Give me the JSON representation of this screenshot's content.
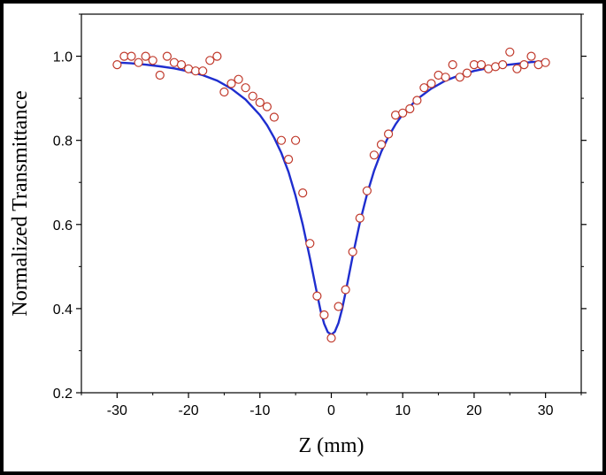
{
  "chart_data": {
    "type": "scatter",
    "xlabel": "Z (mm)",
    "ylabel": "Normalized Transmittance",
    "xlim": [
      -35,
      35
    ],
    "ylim": [
      0.2,
      1.1
    ],
    "xticks": [
      -30,
      -20,
      -10,
      0,
      10,
      20,
      30
    ],
    "yticks": [
      0.2,
      0.4,
      0.6,
      0.8,
      1.0
    ],
    "xtick_labels": [
      "-30",
      "-20",
      "-10",
      "0",
      "10",
      "20",
      "30"
    ],
    "ytick_labels": [
      "0.2",
      "0.4",
      "0.6",
      "0.8",
      "1.0"
    ],
    "grid": false,
    "legend": "none",
    "series": [
      {
        "kind": "markers",
        "marker": "open-circle",
        "color": "#c0392b",
        "points": [
          [
            -30,
            0.98
          ],
          [
            -29,
            1.0
          ],
          [
            -28,
            1.0
          ],
          [
            -27,
            0.985
          ],
          [
            -26,
            1.0
          ],
          [
            -25,
            0.99
          ],
          [
            -24,
            0.955
          ],
          [
            -23,
            1.0
          ],
          [
            -22,
            0.985
          ],
          [
            -21,
            0.98
          ],
          [
            -20,
            0.97
          ],
          [
            -19,
            0.965
          ],
          [
            -18,
            0.965
          ],
          [
            -17,
            0.99
          ],
          [
            -16,
            1.0
          ],
          [
            -15,
            0.915
          ],
          [
            -14,
            0.935
          ],
          [
            -13,
            0.945
          ],
          [
            -12,
            0.925
          ],
          [
            -11,
            0.905
          ],
          [
            -10,
            0.89
          ],
          [
            -9,
            0.88
          ],
          [
            -8,
            0.855
          ],
          [
            -7,
            0.8
          ],
          [
            -6,
            0.755
          ],
          [
            -5,
            0.8
          ],
          [
            -4,
            0.675
          ],
          [
            -3,
            0.555
          ],
          [
            -2,
            0.43
          ],
          [
            -1,
            0.385
          ],
          [
            0,
            0.33
          ],
          [
            1,
            0.405
          ],
          [
            2,
            0.445
          ],
          [
            3,
            0.535
          ],
          [
            4,
            0.615
          ],
          [
            5,
            0.68
          ],
          [
            6,
            0.765
          ],
          [
            7,
            0.79
          ],
          [
            8,
            0.815
          ],
          [
            9,
            0.86
          ],
          [
            10,
            0.865
          ],
          [
            11,
            0.875
          ],
          [
            12,
            0.895
          ],
          [
            13,
            0.925
          ],
          [
            14,
            0.935
          ],
          [
            15,
            0.955
          ],
          [
            16,
            0.95
          ],
          [
            17,
            0.98
          ],
          [
            18,
            0.95
          ],
          [
            19,
            0.96
          ],
          [
            20,
            0.98
          ],
          [
            21,
            0.98
          ],
          [
            22,
            0.97
          ],
          [
            23,
            0.975
          ],
          [
            24,
            0.98
          ],
          [
            25,
            1.01
          ],
          [
            26,
            0.97
          ],
          [
            27,
            0.98
          ],
          [
            28,
            1.0
          ],
          [
            29,
            0.98
          ],
          [
            30,
            0.985
          ]
        ]
      },
      {
        "kind": "fit-line",
        "color": "#1f2ecf",
        "points": [
          [
            -30,
            0.985
          ],
          [
            -28,
            0.983
          ],
          [
            -26,
            0.98
          ],
          [
            -24,
            0.976
          ],
          [
            -22,
            0.971
          ],
          [
            -20,
            0.964
          ],
          [
            -18,
            0.955
          ],
          [
            -16,
            0.942
          ],
          [
            -14,
            0.923
          ],
          [
            -12,
            0.897
          ],
          [
            -10,
            0.86
          ],
          [
            -9,
            0.836
          ],
          [
            -8,
            0.806
          ],
          [
            -7,
            0.77
          ],
          [
            -6,
            0.725
          ],
          [
            -5,
            0.668
          ],
          [
            -4,
            0.6
          ],
          [
            -3,
            0.52
          ],
          [
            -2,
            0.435
          ],
          [
            -1.5,
            0.395
          ],
          [
            -1,
            0.364
          ],
          [
            -0.5,
            0.344
          ],
          [
            0,
            0.338
          ],
          [
            0.5,
            0.345
          ],
          [
            1,
            0.366
          ],
          [
            1.5,
            0.398
          ],
          [
            2,
            0.438
          ],
          [
            3,
            0.525
          ],
          [
            4,
            0.605
          ],
          [
            5,
            0.672
          ],
          [
            6,
            0.728
          ],
          [
            7,
            0.773
          ],
          [
            8,
            0.809
          ],
          [
            9,
            0.838
          ],
          [
            10,
            0.862
          ],
          [
            12,
            0.898
          ],
          [
            14,
            0.923
          ],
          [
            16,
            0.942
          ],
          [
            18,
            0.955
          ],
          [
            20,
            0.965
          ],
          [
            22,
            0.972
          ],
          [
            24,
            0.978
          ],
          [
            26,
            0.982
          ],
          [
            28,
            0.986
          ],
          [
            30,
            0.988
          ]
        ]
      }
    ]
  }
}
